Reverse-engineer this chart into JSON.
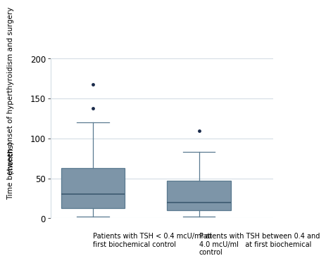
{
  "box1": {
    "whislo": 2,
    "q1": 13,
    "med": 30,
    "q3": 63,
    "whishi": 120,
    "fliers": [
      138,
      168
    ]
  },
  "box2": {
    "whislo": 2,
    "q1": 10,
    "med": 20,
    "q3": 47,
    "whishi": 83,
    "fliers": [
      110
    ]
  },
  "box_color": "#7d95a8",
  "box_edge_color": "#5a7a90",
  "median_color": "#3d5a70",
  "whisker_color": "#5a7a90",
  "flier_color": "#1a2a4a",
  "ylabel_top": "Time between onset of hyperthyroidism and surgery",
  "ylabel_bottom": "(months)",
  "ylim": [
    0,
    200
  ],
  "yticks": [
    0,
    50,
    100,
    150,
    200
  ],
  "label1_line1": "Patients with TSH < 0.4 mcU/ml at",
  "label1_line2": "first biochemical control",
  "label2_line1": "Patients with TSH between 0.4 and",
  "label2_line2": "4.0 mcU/ml   at first biochemical",
  "label2_line3": "control",
  "background_color": "#ffffff",
  "grid_color": "#d4dde5",
  "label_fontsize": 7.0,
  "ylabel_fontsize": 7.5,
  "tick_fontsize": 8.5
}
